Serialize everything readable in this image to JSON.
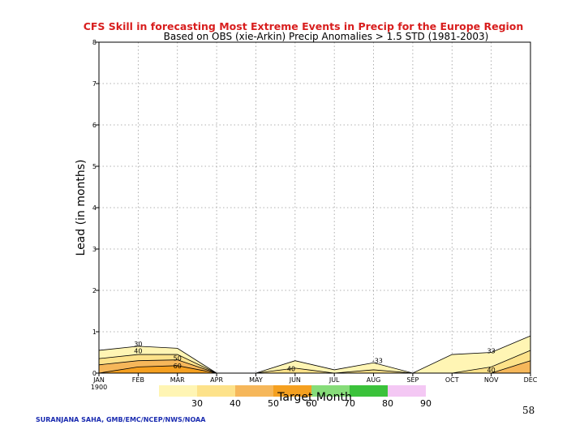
{
  "chart_data": {
    "type": "area",
    "title": "CFS Skill in forecasting Most Extreme Events in Precip for the Europe Region",
    "subtitle": "Based on OBS (xie-Arkin) Precip Anomalies > 1.5 STD (1981-2003)",
    "xlabel": "Target Month",
    "ylabel": "Lead (in months)",
    "categories": [
      "JAN\n1900",
      "FEB",
      "MAR",
      "APR",
      "MAY",
      "JUN",
      "JUL",
      "AUG",
      "SEP",
      "OCT",
      "NOV",
      "DEC"
    ],
    "x_ticks": [
      {
        "label": "JAN",
        "sub": "1900"
      },
      {
        "label": "FEB",
        "sub": ""
      },
      {
        "label": "MAR",
        "sub": ""
      },
      {
        "label": "APR",
        "sub": ""
      },
      {
        "label": "MAY",
        "sub": ""
      },
      {
        "label": "JUN",
        "sub": ""
      },
      {
        "label": "JUL",
        "sub": ""
      },
      {
        "label": "AUG",
        "sub": ""
      },
      {
        "label": "SEP",
        "sub": ""
      },
      {
        "label": "OCT",
        "sub": ""
      },
      {
        "label": "NOV",
        "sub": ""
      },
      {
        "label": "DEC",
        "sub": ""
      }
    ],
    "y_ticks": [
      "0",
      "1",
      "2",
      "3",
      "4",
      "5",
      "6",
      "7",
      "8"
    ],
    "ylim": [
      0,
      8
    ],
    "grid": true,
    "contour_levels": [
      30,
      40,
      50,
      60,
      70,
      80,
      90
    ],
    "level_colors": [
      "#fff5b4",
      "#fde28a",
      "#f6b75a",
      "#f5a020",
      "#86dc79",
      "#3bc23b",
      "#f4c8f4"
    ],
    "series": [
      {
        "name": "30",
        "values": [
          0.55,
          0.65,
          0.6,
          0.0,
          0.0,
          0.3,
          0.08,
          0.25,
          0.0,
          0.45,
          0.5,
          0.9
        ]
      },
      {
        "name": "40",
        "values": [
          0.35,
          0.45,
          0.45,
          0.0,
          0.0,
          0.12,
          0.0,
          0.08,
          0.0,
          0.0,
          0.15,
          0.55
        ]
      },
      {
        "name": "50",
        "values": [
          0.2,
          0.3,
          0.32,
          0.0,
          0.0,
          0.0,
          0.0,
          0.0,
          0.0,
          0.0,
          0.0,
          0.3
        ]
      },
      {
        "name": "60",
        "values": [
          0.0,
          0.15,
          0.18,
          0.0,
          0.0,
          0.0,
          0.0,
          0.0,
          0.0,
          0.0,
          0.0,
          0.0
        ]
      }
    ],
    "contour_labels": [
      {
        "text": "30",
        "x": 1.0,
        "y": 0.65
      },
      {
        "text": "40",
        "x": 1.0,
        "y": 0.48
      },
      {
        "text": "50",
        "x": 2.0,
        "y": 0.3
      },
      {
        "text": "60",
        "x": 2.0,
        "y": 0.12
      },
      {
        "text": "40",
        "x": 4.9,
        "y": 0.05
      },
      {
        "text": "-33",
        "x": 7.1,
        "y": 0.25
      },
      {
        "text": "33",
        "x": 10.0,
        "y": 0.48
      },
      {
        "text": "40",
        "x": 10.0,
        "y": 0.02
      }
    ]
  },
  "legend": {
    "labels": [
      "30",
      "40",
      "50",
      "60",
      "70",
      "80",
      "90"
    ]
  },
  "credit": "SURANJANA SAHA, GMB/EMC/NCEP/NWS/NOAA",
  "page_number": "58"
}
